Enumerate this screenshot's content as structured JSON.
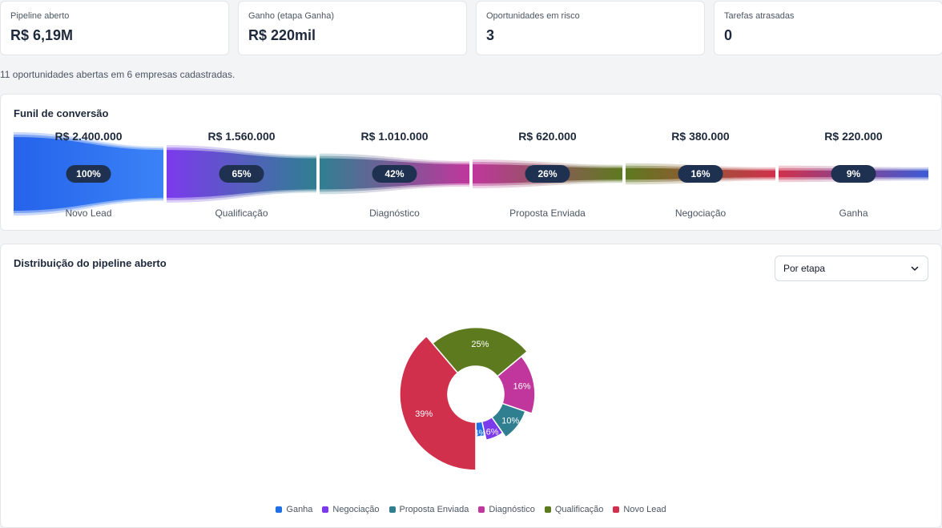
{
  "kpis": [
    {
      "label": "Pipeline aberto",
      "value": "R$ 6,19M"
    },
    {
      "label": "Ganho (etapa Ganha)",
      "value": "R$ 220mil"
    },
    {
      "label": "Oportunidades em risco",
      "value": "3"
    },
    {
      "label": "Tarefas atrasadas",
      "value": "0"
    }
  ],
  "summary": "11 oportunidades abertas em 6 empresas cadastradas.",
  "funnel": {
    "title": "Funil de conversão",
    "stages": [
      {
        "name": "Novo Lead",
        "amount": "R$ 2.400.000",
        "pct": "100%",
        "value": 2400000,
        "colors": [
          "#2563eb",
          "#3b82f6"
        ]
      },
      {
        "name": "Qualificação",
        "amount": "R$ 1.560.000",
        "pct": "65%",
        "value": 1560000,
        "colors": [
          "#7c3aed",
          "#2f7f91"
        ]
      },
      {
        "name": "Diagnóstico",
        "amount": "R$ 1.010.000",
        "pct": "42%",
        "value": 1010000,
        "colors": [
          "#2f7f91",
          "#c0369c"
        ]
      },
      {
        "name": "Proposta Enviada",
        "amount": "R$ 620.000",
        "pct": "26%",
        "value": 620000,
        "colors": [
          "#c0369c",
          "#5d7a1e"
        ]
      },
      {
        "name": "Negociação",
        "amount": "R$ 380.000",
        "pct": "16%",
        "value": 380000,
        "colors": [
          "#5d7a1e",
          "#d1304c"
        ]
      },
      {
        "name": "Ganha",
        "amount": "R$ 220.000",
        "pct": "9%",
        "value": 220000,
        "colors": [
          "#d1304c",
          "#3b5bd6"
        ]
      }
    ]
  },
  "distribution": {
    "title": "Distribuição do pipeline aberto",
    "select_value": "Por etapa"
  },
  "chart_data": {
    "type": "pie",
    "variant": "nightingale-donut",
    "categories": [
      "Ganha",
      "Negociação",
      "Proposta Enviada",
      "Diagnóstico",
      "Qualificação",
      "Novo Lead"
    ],
    "values": [
      220000,
      380000,
      620000,
      1010000,
      1560000,
      2400000
    ],
    "labels": [
      "4%",
      "6%",
      "10%",
      "16%",
      "25%",
      "39%"
    ],
    "colors": [
      "#1f6fe5",
      "#7c3aed",
      "#2f7f91",
      "#c0369c",
      "#5d7a1e",
      "#d1304c"
    ],
    "legend_position": "bottom"
  }
}
